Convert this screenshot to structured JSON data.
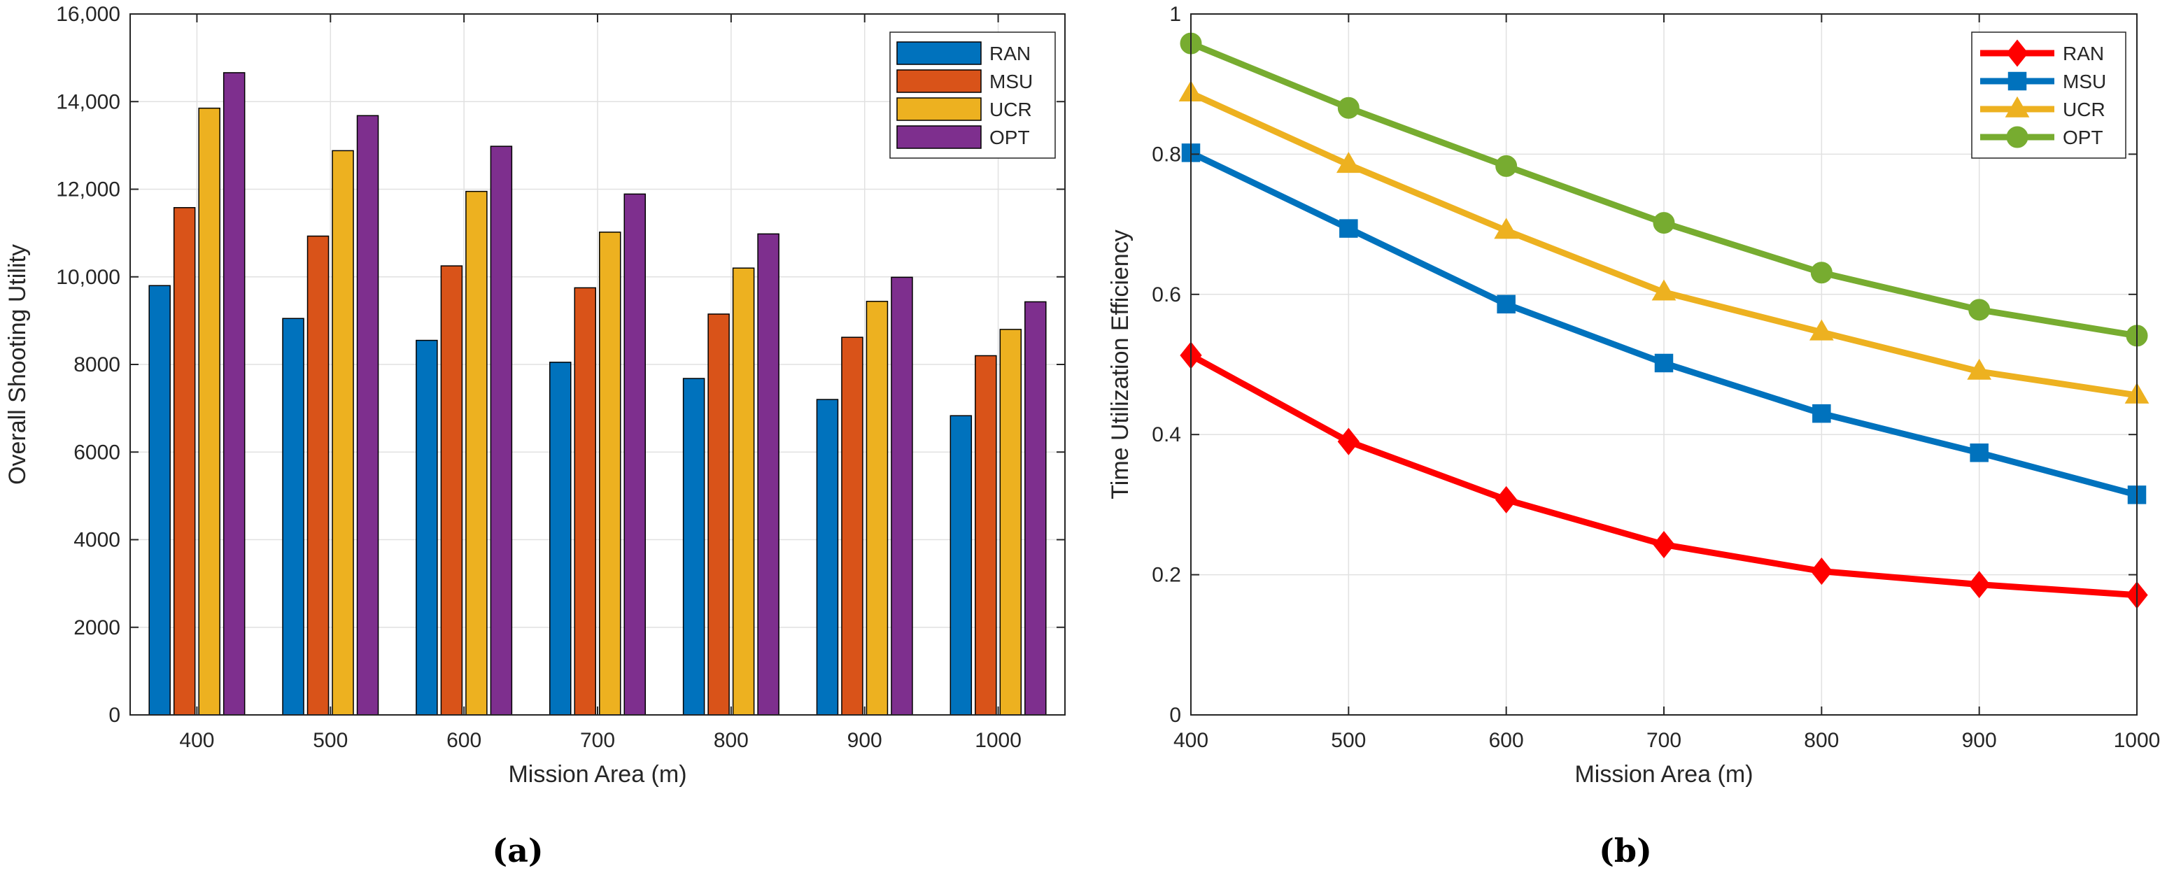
{
  "colors": {
    "RAN_bar": "#0072BD",
    "MSU_bar": "#D95319",
    "UCR_bar": "#EDB120",
    "OPT_bar": "#7E2F8E",
    "RAN_line": "#FF0000",
    "MSU_line": "#0072BD",
    "UCR_line": "#EDB120",
    "OPT_line": "#77AC30"
  },
  "chart_data": [
    {
      "type": "bar",
      "panel_caption": "(a)",
      "xlabel": "Mission Area (m)",
      "ylabel": "Overall Shooting Utility",
      "categories": [
        "400",
        "500",
        "600",
        "700",
        "800",
        "900",
        "1000"
      ],
      "ylim": [
        0,
        16000
      ],
      "yticks": [
        0,
        2000,
        4000,
        6000,
        8000,
        10000,
        12000,
        14000,
        16000
      ],
      "ytick_labels": [
        "0",
        "2000",
        "4000",
        "6000",
        "8000",
        "10,000",
        "12,000",
        "14,000",
        "16,000"
      ],
      "grid": true,
      "legend_position": "top-right",
      "series": [
        {
          "name": "RAN",
          "values": [
            9800,
            9050,
            8550,
            8050,
            7680,
            7200,
            6830
          ]
        },
        {
          "name": "MSU",
          "values": [
            11580,
            10930,
            10250,
            9750,
            9150,
            8620,
            8200
          ]
        },
        {
          "name": "UCR",
          "values": [
            13850,
            12880,
            11950,
            11020,
            10200,
            9440,
            8800
          ]
        },
        {
          "name": "OPT",
          "values": [
            14660,
            13680,
            12980,
            11890,
            10980,
            9990,
            9430
          ]
        }
      ]
    },
    {
      "type": "line",
      "panel_caption": "(b)",
      "xlabel": "Mission Area (m)",
      "ylabel": "Time Utilization Efficiency",
      "x": [
        400,
        500,
        600,
        700,
        800,
        900,
        1000
      ],
      "xlim": [
        400,
        1000
      ],
      "ylim": [
        0,
        1
      ],
      "yticks": [
        0,
        0.2,
        0.4,
        0.6,
        0.8,
        1
      ],
      "ytick_labels": [
        "0",
        "0.2",
        "0.4",
        "0.6",
        "0.8",
        "1"
      ],
      "grid": true,
      "legend_position": "top-right",
      "series": [
        {
          "name": "RAN",
          "marker": "diamond",
          "values": [
            0.513,
            0.39,
            0.307,
            0.243,
            0.205,
            0.186,
            0.171
          ]
        },
        {
          "name": "MSU",
          "marker": "square",
          "values": [
            0.802,
            0.694,
            0.586,
            0.502,
            0.43,
            0.374,
            0.314
          ]
        },
        {
          "name": "UCR",
          "marker": "triangle",
          "values": [
            0.887,
            0.785,
            0.691,
            0.603,
            0.546,
            0.49,
            0.456
          ]
        },
        {
          "name": "OPT",
          "marker": "circle",
          "values": [
            0.958,
            0.866,
            0.783,
            0.702,
            0.631,
            0.578,
            0.541
          ]
        }
      ]
    }
  ]
}
